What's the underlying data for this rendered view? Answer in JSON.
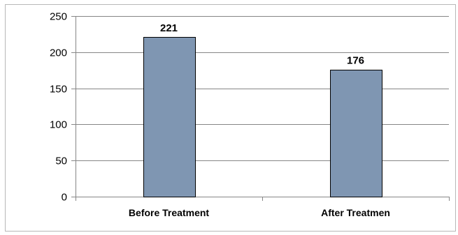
{
  "chart_data": {
    "type": "bar",
    "categories": [
      "Before Treatment",
      "After Treatmen"
    ],
    "values": [
      221,
      176
    ],
    "data_labels": [
      "221",
      "176"
    ],
    "ylim": [
      0,
      250
    ],
    "yticks": [
      0,
      50,
      100,
      150,
      200,
      250
    ],
    "ytick_labels": [
      "0",
      "50",
      "100",
      "150",
      "200",
      "250"
    ],
    "grid": true,
    "legend": "none",
    "title": "",
    "xlabel": "",
    "ylabel": "",
    "colors": {
      "bar": "#7f96b2",
      "bar_outline": "#000000",
      "gridline": "#868686",
      "frame": "#b8b8b8"
    }
  }
}
